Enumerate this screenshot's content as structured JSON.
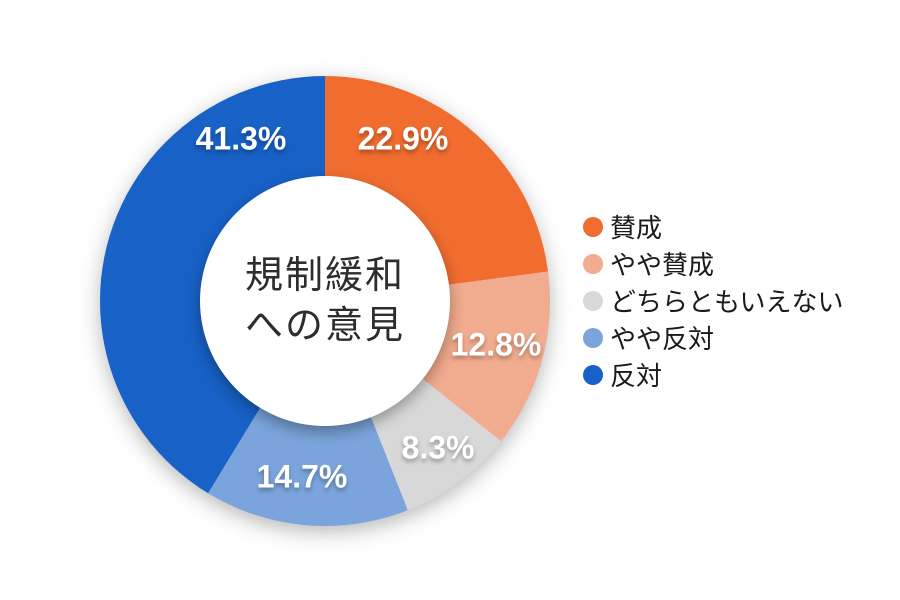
{
  "chart_data": {
    "type": "pie",
    "donut": true,
    "title": "規制緩和への意見",
    "center_label_lines": [
      "規制緩和",
      "への意見"
    ],
    "legend_position": "right",
    "start_angle_deg": 0,
    "direction": "clockwise",
    "series": [
      {
        "label": "賛成",
        "value": 22.9,
        "display": "22.9%",
        "color": "#F06C2F"
      },
      {
        "label": "やや賛成",
        "value": 12.8,
        "display": "12.8%",
        "color": "#F1AB8E"
      },
      {
        "label": "どちらともいえない",
        "value": 8.3,
        "display": "8.3%",
        "color": "#D8D8D8"
      },
      {
        "label": "やや反対",
        "value": 14.7,
        "display": "14.7%",
        "color": "#7AA4DB"
      },
      {
        "label": "反対",
        "value": 41.3,
        "display": "41.3%",
        "color": "#1861C6"
      }
    ]
  }
}
